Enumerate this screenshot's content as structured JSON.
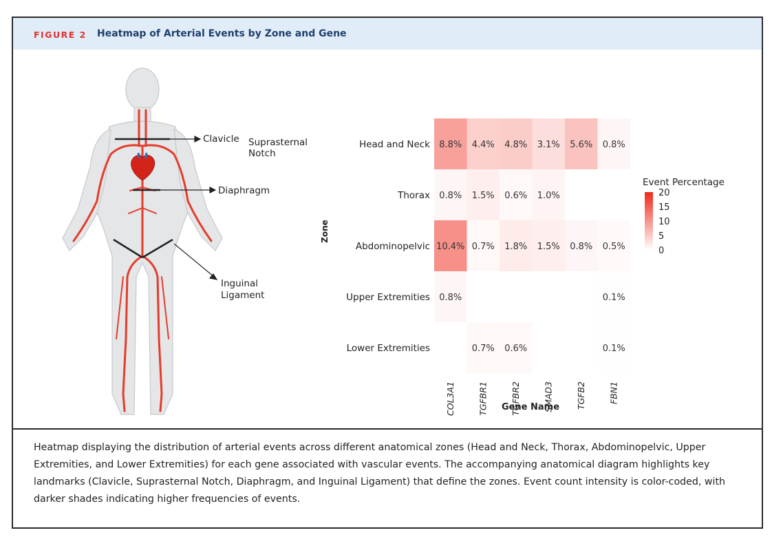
{
  "figure": {
    "label": "FIGURE 2",
    "title": "Heatmap of Arterial Events by Zone and Gene",
    "caption": "Heatmap displaying the distribution of arterial events across different anatomical zones (Head and Neck, Thorax, Abdominopelvic, Upper Extremities, and Lower Extremities) for each gene associated with vascular events. The accompanying anatomical diagram highlights key landmarks (Clavicle, Suprasternal Notch, Diaphragm, and Inguinal Ligament) that define the zones. Event count intensity is color-coded, with darker shades indicating higher frequencies of events."
  },
  "diagram": {
    "labels": {
      "clavicle": "Clavicle",
      "suprasternal_1": "Suprasternal",
      "suprasternal_2": "Notch",
      "diaphragm": "Diaphragm",
      "inguinal_1": "Inguinal",
      "inguinal_2": "Ligament"
    }
  },
  "chart_data": {
    "type": "heatmap",
    "title": "",
    "xlabel": "Gene Name",
    "ylabel": "Zone",
    "x_categories": [
      "COL3A1",
      "TGFBR1",
      "TGFBR2",
      "SMAD3",
      "TGFB2",
      "FBN1"
    ],
    "y_categories": [
      "Head and Neck",
      "Thorax",
      "Abdominopelvic",
      "Upper Extremities",
      "Lower Extremities"
    ],
    "values": [
      [
        8.8,
        4.4,
        4.8,
        3.1,
        5.6,
        0.8
      ],
      [
        0.8,
        1.5,
        0.6,
        1.0,
        null,
        null
      ],
      [
        10.4,
        0.7,
        1.8,
        1.5,
        0.8,
        0.5
      ],
      [
        0.8,
        null,
        null,
        null,
        null,
        0.1
      ],
      [
        null,
        0.7,
        0.6,
        null,
        null,
        0.1
      ]
    ],
    "value_unit": "%",
    "colorbar": {
      "title": "Event Percentage",
      "range": [
        0,
        20
      ],
      "ticks": [
        20,
        15,
        10,
        5,
        0
      ],
      "color_low": "#ffffff",
      "color_high": "#ee2a1b"
    },
    "legend_position": "right"
  }
}
